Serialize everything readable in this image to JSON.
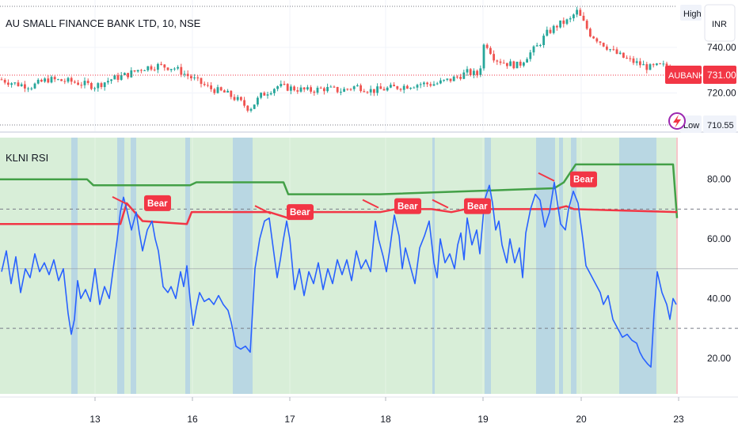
{
  "symbol_title": "AU SMALL FINANCE BANK LTD, 10, NSE",
  "currency_button": "INR",
  "high_label": "High",
  "low_label": "Low",
  "low_value": "710.55",
  "last_price_symbol": "AUBANK",
  "last_price_value": "731.00",
  "indicator_title": "KLNI RSI",
  "price_axis_ticks": [
    "740.00",
    "720.00"
  ],
  "rsi_axis_ticks": [
    "80.00",
    "60.00",
    "40.00",
    "20.00"
  ],
  "x_axis_ticks": [
    "13",
    "16",
    "17",
    "18",
    "19",
    "20",
    "23"
  ],
  "bear_label": "Bear",
  "colors": {
    "candle_up": "#26a69a",
    "candle_down": "#ef5350",
    "rsi_line": "#2962ff",
    "upper_band": "#43a047",
    "lower_band": "#f23645",
    "bg_green": "#d8eed8",
    "bg_blue": "#b9d7e3",
    "badge": "#f23645"
  },
  "chart_data": [
    {
      "type": "candlestick",
      "title": "AU SMALL FINANCE BANK LTD, 10, NSE",
      "ylim": [
        706,
        758
      ],
      "x_ticks": [
        "13",
        "16",
        "17",
        "18",
        "19",
        "20",
        "23"
      ],
      "y_ticks": [
        740,
        720
      ],
      "last_price": 731.0,
      "day_low": 710.55,
      "close_path": [
        [
          0,
          726
        ],
        [
          20,
          724
        ],
        [
          40,
          723
        ],
        [
          60,
          726
        ],
        [
          90,
          725
        ],
        [
          120,
          723
        ],
        [
          140,
          726
        ],
        [
          160,
          728
        ],
        [
          180,
          731
        ],
        [
          200,
          732
        ],
        [
          220,
          731
        ],
        [
          245,
          726
        ],
        [
          265,
          722
        ],
        [
          285,
          720
        ],
        [
          300,
          717
        ],
        [
          315,
          713
        ],
        [
          330,
          719
        ],
        [
          350,
          723
        ],
        [
          370,
          722
        ],
        [
          390,
          721
        ],
        [
          410,
          722
        ],
        [
          430,
          721
        ],
        [
          450,
          723
        ],
        [
          470,
          721
        ],
        [
          490,
          722
        ],
        [
          510,
          723
        ],
        [
          530,
          724
        ],
        [
          550,
          724
        ],
        [
          570,
          726
        ],
        [
          590,
          729
        ],
        [
          605,
          728
        ],
        [
          612,
          743
        ],
        [
          625,
          735
        ],
        [
          640,
          733
        ],
        [
          655,
          732
        ],
        [
          665,
          736
        ],
        [
          680,
          741
        ],
        [
          690,
          746
        ],
        [
          705,
          750
        ],
        [
          720,
          752
        ],
        [
          728,
          756
        ],
        [
          735,
          752
        ],
        [
          745,
          746
        ],
        [
          760,
          742
        ],
        [
          775,
          738
        ],
        [
          790,
          735
        ],
        [
          805,
          733
        ],
        [
          820,
          731
        ],
        [
          835,
          732
        ],
        [
          848,
          731
        ]
      ]
    },
    {
      "type": "line",
      "title": "KLNI RSI",
      "ylim": [
        8,
        94
      ],
      "y_ticks": [
        80,
        60,
        40,
        20
      ],
      "dashed_levels": [
        70,
        30
      ],
      "solid_level": 50,
      "series": [
        {
          "color": "#2962ff",
          "points": [
            [
              2,
              49
            ],
            [
              8,
              56
            ],
            [
              14,
              45
            ],
            [
              20,
              54
            ],
            [
              26,
              42
            ],
            [
              32,
              50
            ],
            [
              38,
              47
            ],
            [
              44,
              55
            ],
            [
              50,
              49
            ],
            [
              56,
              52
            ],
            [
              62,
              48
            ],
            [
              68,
              53
            ],
            [
              74,
              46
            ],
            [
              80,
              50
            ],
            [
              86,
              35
            ],
            [
              90,
              28
            ],
            [
              94,
              33
            ],
            [
              98,
              46
            ],
            [
              102,
              40
            ],
            [
              108,
              43
            ],
            [
              114,
              39
            ],
            [
              120,
              50
            ],
            [
              126,
              38
            ],
            [
              132,
              44
            ],
            [
              138,
              40
            ],
            [
              144,
              52
            ],
            [
              148,
              60
            ],
            [
              152,
              69
            ],
            [
              156,
              74
            ],
            [
              160,
              70
            ],
            [
              166,
              63
            ],
            [
              172,
              69
            ],
            [
              176,
              62
            ],
            [
              180,
              56
            ],
            [
              186,
              63
            ],
            [
              192,
              66
            ],
            [
              196,
              60
            ],
            [
              200,
              56
            ],
            [
              206,
              44
            ],
            [
              212,
              42
            ],
            [
              216,
              44
            ],
            [
              222,
              40
            ],
            [
              228,
              49
            ],
            [
              232,
              44
            ],
            [
              236,
              51
            ],
            [
              240,
              40
            ],
            [
              244,
              31
            ],
            [
              248,
              37
            ],
            [
              252,
              42
            ],
            [
              258,
              39
            ],
            [
              264,
              40
            ],
            [
              270,
              38
            ],
            [
              276,
              41
            ],
            [
              282,
              38
            ],
            [
              288,
              36
            ],
            [
              292,
              32
            ],
            [
              298,
              24
            ],
            [
              304,
              23
            ],
            [
              310,
              24
            ],
            [
              316,
              22
            ],
            [
              322,
              50
            ],
            [
              328,
              60
            ],
            [
              334,
              66
            ],
            [
              340,
              67
            ],
            [
              346,
              55
            ],
            [
              350,
              47
            ],
            [
              354,
              53
            ],
            [
              358,
              60
            ],
            [
              362,
              66
            ],
            [
              366,
              60
            ],
            [
              372,
              43
            ],
            [
              378,
              50
            ],
            [
              384,
              41
            ],
            [
              390,
              49
            ],
            [
              396,
              45
            ],
            [
              402,
              52
            ],
            [
              408,
              43
            ],
            [
              414,
              50
            ],
            [
              420,
              45
            ],
            [
              426,
              53
            ],
            [
              432,
              48
            ],
            [
              438,
              53
            ],
            [
              444,
              46
            ],
            [
              450,
              56
            ],
            [
              456,
              50
            ],
            [
              462,
              53
            ],
            [
              468,
              49
            ],
            [
              474,
              66
            ],
            [
              478,
              60
            ],
            [
              484,
              54
            ],
            [
              488,
              49
            ],
            [
              492,
              56
            ],
            [
              498,
              68
            ],
            [
              504,
              61
            ],
            [
              508,
              50
            ],
            [
              512,
              57
            ],
            [
              518,
              51
            ],
            [
              524,
              45
            ],
            [
              530,
              57
            ],
            [
              536,
              61
            ],
            [
              542,
              66
            ],
            [
              548,
              52
            ],
            [
              552,
              47
            ],
            [
              556,
              60
            ],
            [
              562,
              52
            ],
            [
              568,
              55
            ],
            [
              574,
              50
            ],
            [
              578,
              58
            ],
            [
              582,
              62
            ],
            [
              586,
              53
            ],
            [
              590,
              67
            ],
            [
              596,
              58
            ],
            [
              602,
              63
            ],
            [
              606,
              55
            ],
            [
              612,
              73
            ],
            [
              618,
              78
            ],
            [
              622,
              72
            ],
            [
              626,
              63
            ],
            [
              630,
              66
            ],
            [
              634,
              58
            ],
            [
              640,
              52
            ],
            [
              644,
              60
            ],
            [
              650,
              52
            ],
            [
              656,
              57
            ],
            [
              660,
              47
            ],
            [
              664,
              62
            ],
            [
              670,
              70
            ],
            [
              676,
              75
            ],
            [
              682,
              73
            ],
            [
              688,
              64
            ],
            [
              694,
              69
            ],
            [
              700,
              79
            ],
            [
              704,
              72
            ],
            [
              708,
              65
            ],
            [
              714,
              63
            ],
            [
              718,
              70
            ],
            [
              724,
              76
            ],
            [
              730,
              72
            ],
            [
              736,
              60
            ],
            [
              740,
              51
            ],
            [
              746,
              48
            ],
            [
              752,
              45
            ],
            [
              758,
              42
            ],
            [
              762,
              38
            ],
            [
              768,
              41
            ],
            [
              774,
              33
            ],
            [
              780,
              30
            ],
            [
              786,
              27
            ],
            [
              792,
              28
            ],
            [
              798,
              26
            ],
            [
              804,
              25
            ],
            [
              808,
              22
            ],
            [
              812,
              20
            ],
            [
              818,
              18
            ],
            [
              822,
              17
            ],
            [
              826,
              35
            ],
            [
              830,
              49
            ],
            [
              836,
              42
            ],
            [
              842,
              38
            ],
            [
              846,
              33
            ],
            [
              850,
              40
            ],
            [
              854,
              38
            ]
          ]
        },
        {
          "color": "#43a047",
          "points": [
            [
              0,
              80
            ],
            [
              110,
              80
            ],
            [
              118,
              78
            ],
            [
              240,
              78
            ],
            [
              248,
              79
            ],
            [
              358,
              79
            ],
            [
              364,
              75
            ],
            [
              480,
              75
            ],
            [
              700,
              77
            ],
            [
              712,
              79
            ],
            [
              727,
              85
            ],
            [
              850,
              85
            ],
            [
              855,
              67
            ]
          ]
        },
        {
          "color": "#f23645",
          "points": [
            [
              0,
              65
            ],
            [
              152,
              65
            ],
            [
              160,
              72
            ],
            [
              180,
              66
            ],
            [
              236,
              65
            ],
            [
              242,
              69
            ],
            [
              340,
              69
            ],
            [
              364,
              67
            ],
            [
              370,
              69
            ],
            [
              480,
              69
            ],
            [
              500,
              70
            ],
            [
              545,
              70
            ],
            [
              570,
              69
            ],
            [
              588,
              70
            ],
            [
              700,
              70
            ],
            [
              715,
              71
            ],
            [
              725,
              70
            ],
            [
              855,
              69
            ]
          ]
        }
      ],
      "bear_labels": [
        {
          "x": 162,
          "y": 72
        },
        {
          "x": 342,
          "y": 69
        },
        {
          "x": 478,
          "y": 71
        },
        {
          "x": 566,
          "y": 71
        },
        {
          "x": 700,
          "y": 80
        }
      ],
      "blue_bands": [
        [
          90,
          98
        ],
        [
          148,
          157
        ],
        [
          165,
          172
        ],
        [
          234,
          240
        ],
        [
          294,
          319
        ],
        [
          546,
          549
        ],
        [
          612,
          620
        ],
        [
          677,
          701
        ],
        [
          706,
          711
        ],
        [
          721,
          728
        ],
        [
          782,
          829
        ]
      ]
    }
  ]
}
